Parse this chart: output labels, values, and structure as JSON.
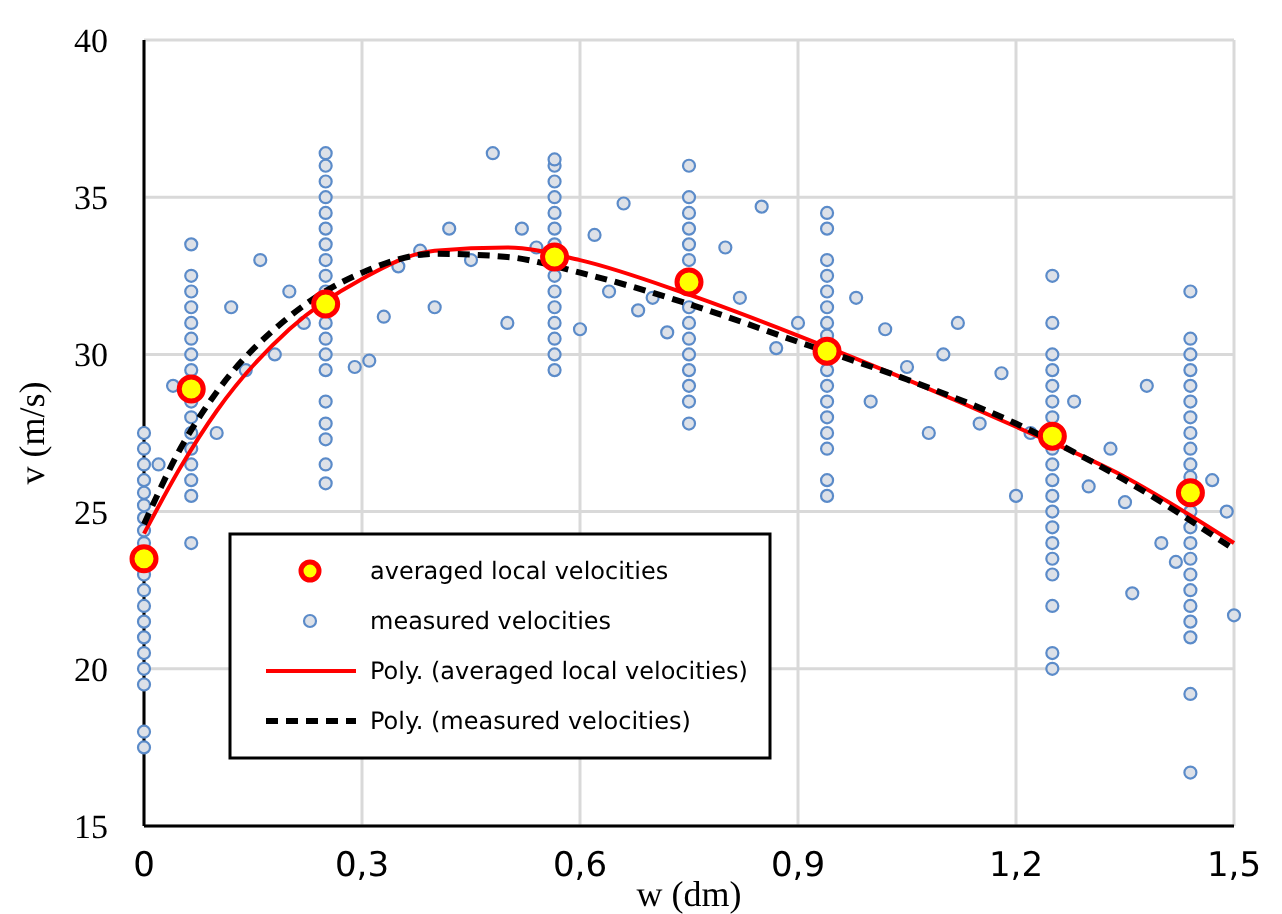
{
  "chart_data": {
    "type": "scatter",
    "xlabel": "w (dm)",
    "ylabel": "v (m/s)",
    "xlim": [
      0,
      1.5
    ],
    "xticks": [
      0,
      {
        "value": 0.3,
        "label": "0,3"
      },
      {
        "value": 0.6,
        "label": "0,6"
      },
      {
        "value": 0.9,
        "label": "0,9"
      },
      {
        "value": 1.2,
        "label": "1,2"
      },
      {
        "value": 1.5,
        "label": "1,5"
      }
    ],
    "ylim": [
      15,
      40
    ],
    "yticks": [
      15,
      20,
      25,
      30,
      35,
      40
    ],
    "grid": true,
    "legend": "bottom left",
    "series": [
      {
        "name": "averaged local velocities",
        "marker": "circle",
        "color": "#ff0000",
        "x": [
          0,
          0.065,
          0.25,
          0.565,
          0.75,
          0.94,
          1.25,
          1.44
        ],
        "values": [
          23.5,
          28.9,
          31.6,
          33.1,
          32.3,
          30.1,
          27.4,
          25.6
        ]
      },
      {
        "name": "measured velocities",
        "marker": "circle",
        "color": "#5b8bc9",
        "x": [
          0,
          0,
          0,
          0,
          0,
          0,
          0,
          0,
          0,
          0,
          0,
          0,
          0,
          0,
          0,
          0,
          0,
          0,
          0,
          0.065,
          0.065,
          0.065,
          0.065,
          0.065,
          0.065,
          0.065,
          0.065,
          0.065,
          0.065,
          0.065,
          0.065,
          0.065,
          0.065,
          0.065,
          0.065,
          0.25,
          0.25,
          0.25,
          0.25,
          0.25,
          0.25,
          0.25,
          0.25,
          0.25,
          0.25,
          0.25,
          0.25,
          0.25,
          0.25,
          0.25,
          0.25,
          0.25,
          0.25,
          0.25,
          0.565,
          0.565,
          0.565,
          0.565,
          0.565,
          0.565,
          0.565,
          0.565,
          0.565,
          0.565,
          0.565,
          0.565,
          0.565,
          0.565,
          0.75,
          0.75,
          0.75,
          0.75,
          0.75,
          0.75,
          0.75,
          0.75,
          0.75,
          0.75,
          0.75,
          0.75,
          0.75,
          0.75,
          0.94,
          0.94,
          0.94,
          0.94,
          0.94,
          0.94,
          0.94,
          0.94,
          0.94,
          0.94,
          0.94,
          0.94,
          0.94,
          0.94,
          0.94,
          0.94,
          1.25,
          1.25,
          1.25,
          1.25,
          1.25,
          1.25,
          1.25,
          1.25,
          1.25,
          1.25,
          1.25,
          1.25,
          1.25,
          1.25,
          1.25,
          1.25,
          1.25,
          1.25,
          1.25,
          1.44,
          1.44,
          1.44,
          1.44,
          1.44,
          1.44,
          1.44,
          1.44,
          1.44,
          1.44,
          1.44,
          1.44,
          1.44,
          1.44,
          1.44,
          1.44,
          1.44,
          1.44,
          1.44,
          1.44,
          1.44,
          1.44,
          0.02,
          0.04,
          0.1,
          0.12,
          0.14,
          0.16,
          0.18,
          0.2,
          0.22,
          0.29,
          0.31,
          0.33,
          0.35,
          0.38,
          0.4,
          0.42,
          0.45,
          0.48,
          0.5,
          0.52,
          0.54,
          0.6,
          0.62,
          0.64,
          0.66,
          0.68,
          0.7,
          0.72,
          0.8,
          0.82,
          0.85,
          0.87,
          0.9,
          0.98,
          1.0,
          1.02,
          1.05,
          1.08,
          1.1,
          1.12,
          1.15,
          1.18,
          1.2,
          1.22,
          1.28,
          1.3,
          1.33,
          1.35,
          1.38,
          1.4,
          1.47,
          1.49,
          1.5,
          1.42,
          1.36
        ],
        "values": [
          17.5,
          18,
          19.5,
          20,
          20.5,
          21,
          21.5,
          22,
          22.5,
          23,
          24,
          24.4,
          24.8,
          25.2,
          25.6,
          26,
          26.5,
          27,
          27.5,
          24,
          25.5,
          26,
          26.5,
          27,
          27.5,
          28,
          28.5,
          29.5,
          30,
          30.5,
          31,
          31.5,
          32,
          32.5,
          33.5,
          25.9,
          26.5,
          27.3,
          27.8,
          28.5,
          29.5,
          30,
          30.5,
          31,
          32,
          32.5,
          33,
          33.5,
          34,
          34.5,
          35,
          35.5,
          36,
          36.4,
          29.5,
          30,
          30.5,
          31,
          31.5,
          32,
          32.5,
          33.5,
          34,
          34.5,
          35,
          35.5,
          36,
          36.2,
          27.8,
          28.5,
          29,
          29.5,
          30,
          30.5,
          31,
          31.5,
          33,
          33.5,
          34,
          34.5,
          35,
          36,
          25.5,
          26,
          27,
          27.5,
          28,
          28.5,
          29,
          29.5,
          30.6,
          31,
          31.5,
          32,
          32.5,
          33,
          34,
          34.5,
          20,
          20.5,
          22,
          23,
          23.5,
          24,
          24.5,
          25,
          25.5,
          26,
          26.5,
          27,
          28,
          28.5,
          29,
          29.5,
          30,
          31,
          32.5,
          16.7,
          19.2,
          21,
          21.5,
          22,
          22.5,
          23,
          23.5,
          24,
          24.5,
          25,
          26.1,
          26.5,
          27,
          27.5,
          28,
          28.5,
          29,
          29.5,
          30,
          30.5,
          32,
          26.5,
          29,
          27.5,
          31.5,
          29.5,
          33,
          30,
          32,
          31,
          29.6,
          29.8,
          31.2,
          32.8,
          33.3,
          31.5,
          34,
          33,
          36.4,
          31,
          34,
          33.4,
          30.8,
          33.8,
          32,
          34.8,
          31.4,
          31.8,
          30.7,
          33.4,
          31.8,
          34.7,
          30.2,
          31,
          31.8,
          28.5,
          30.8,
          29.6,
          27.5,
          30,
          31,
          27.8,
          29.4,
          25.5,
          27.5,
          28.5,
          25.8,
          27,
          25.3,
          29,
          24,
          26,
          25,
          21.7,
          23.4,
          22.4
        ]
      },
      {
        "name": "Poly. (averaged local velocities)",
        "type": "line",
        "marker": "none",
        "line_style": "solid",
        "color": "#ff0000",
        "x": [
          0,
          0.05,
          0.1,
          0.2,
          0.3,
          0.4,
          0.5,
          0.6,
          0.75,
          0.9,
          1.05,
          1.2,
          1.35,
          1.5
        ],
        "values": [
          24.3,
          26.4,
          28.2,
          30.8,
          32.4,
          33.3,
          33.4,
          33,
          31.9,
          30.6,
          29.2,
          27.7,
          26.1,
          24
        ]
      },
      {
        "name": "Poly. (measured velocities)",
        "type": "line",
        "marker": "none",
        "line_style": "dashed",
        "color": "#000000",
        "x": [
          0,
          0.05,
          0.1,
          0.2,
          0.3,
          0.4,
          0.5,
          0.6,
          0.75,
          0.9,
          1.05,
          1.2,
          1.35,
          1.5
        ],
        "values": [
          24.6,
          27,
          28.8,
          31.2,
          32.6,
          33.2,
          33.1,
          32.6,
          31.6,
          30.4,
          29.2,
          27.8,
          26,
          23.8
        ]
      }
    ]
  }
}
